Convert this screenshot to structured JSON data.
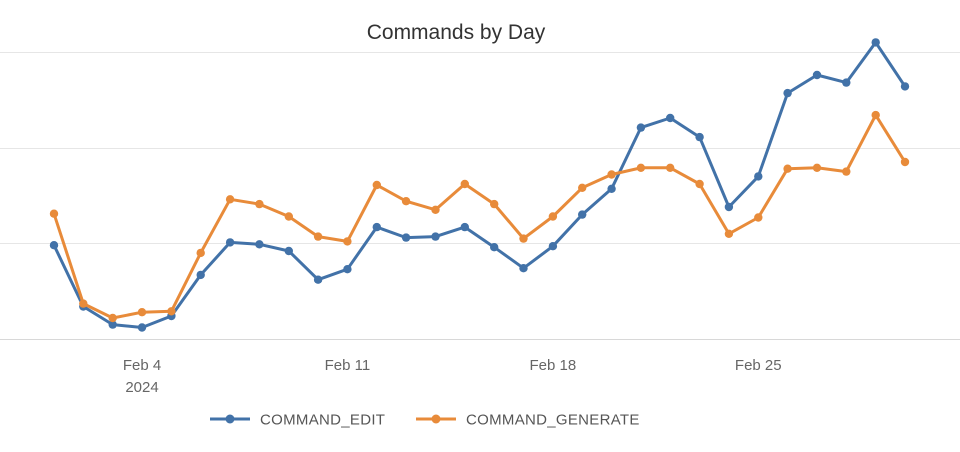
{
  "colors": {
    "COMMAND_EDIT": "#4272a8",
    "COMMAND_GENERATE": "#e88b3a"
  },
  "chart_data": {
    "type": "line",
    "title": "Commands by Day",
    "xlabel": "",
    "ylabel": "",
    "x": [
      "2024-02-01",
      "2024-02-02",
      "2024-02-03",
      "2024-02-04",
      "2024-02-05",
      "2024-02-06",
      "2024-02-07",
      "2024-02-08",
      "2024-02-09",
      "2024-02-10",
      "2024-02-11",
      "2024-02-12",
      "2024-02-13",
      "2024-02-14",
      "2024-02-15",
      "2024-02-16",
      "2024-02-17",
      "2024-02-18",
      "2024-02-19",
      "2024-02-20",
      "2024-02-21",
      "2024-02-22",
      "2024-02-23",
      "2024-02-24",
      "2024-02-25",
      "2024-02-26",
      "2024-02-27",
      "2024-02-28",
      "2024-02-29",
      "2024-03-01"
    ],
    "xticks": [
      {
        "date": "2024-02-04",
        "label": "Feb 4",
        "sublabel": "2024"
      },
      {
        "date": "2024-02-11",
        "label": "Feb 11",
        "sublabel": ""
      },
      {
        "date": "2024-02-18",
        "label": "Feb 18",
        "sublabel": ""
      },
      {
        "date": "2024-02-25",
        "label": "Feb 25",
        "sublabel": ""
      }
    ],
    "ylim": [
      0,
      300
    ],
    "yticks": [
      0,
      100,
      200,
      300
    ],
    "y_tick_labels_shown": false,
    "grid": true,
    "legend": "bottom",
    "series": [
      {
        "name": "COMMAND_EDIT",
        "values": [
          98,
          34,
          15,
          12,
          24,
          67,
          101,
          99,
          92,
          62,
          73,
          117,
          106,
          107,
          117,
          96,
          74,
          97,
          130,
          157,
          221,
          231,
          211,
          138,
          170,
          257,
          276,
          268,
          310,
          264
        ]
      },
      {
        "name": "COMMAND_GENERATE",
        "values": [
          131,
          37,
          22,
          28,
          29,
          90,
          146,
          141,
          128,
          107,
          102,
          161,
          144,
          135,
          162,
          141,
          105,
          128,
          158,
          172,
          179,
          179,
          162,
          110,
          127,
          178,
          179,
          175,
          234,
          185
        ]
      }
    ]
  }
}
